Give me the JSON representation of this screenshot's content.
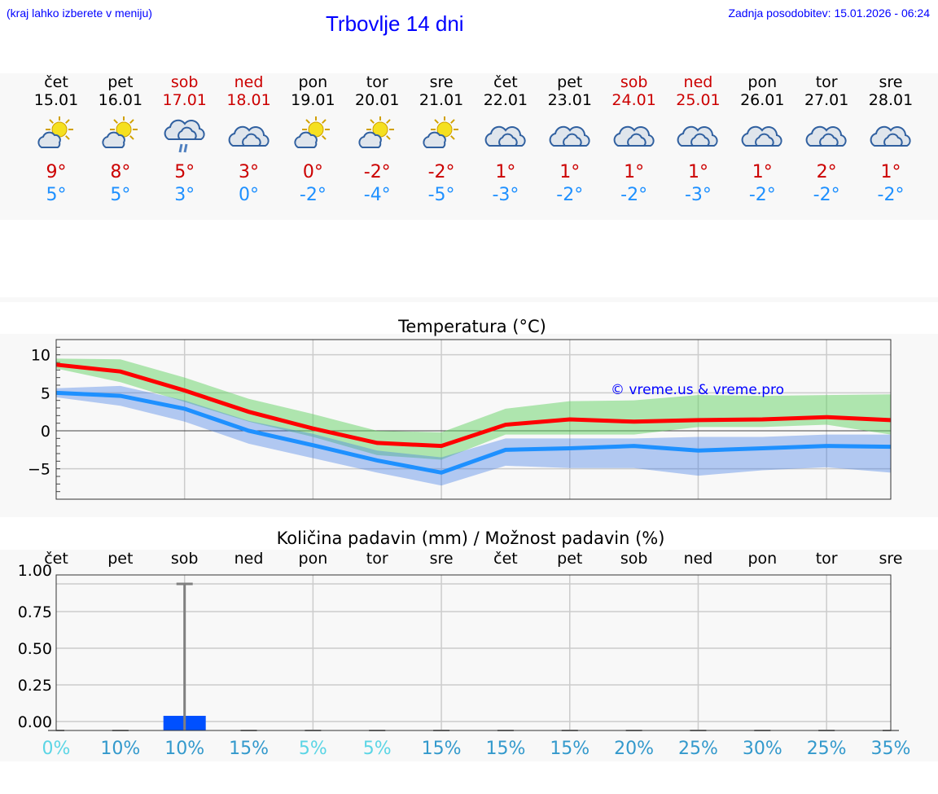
{
  "header": {
    "hint": "(kraj lahko izberete v meniju)",
    "title": "Trbovlje 14 dni",
    "updated": "Zadnja posodobitev: 15.01.2026 - 06:24"
  },
  "colors": {
    "max": "#cc0000",
    "min": "#1e90ff",
    "bar": "#0050ff"
  },
  "days": [
    {
      "name": "čet",
      "date": "15.01",
      "icon": "sun-cloud-icon",
      "max": "9°",
      "min": "5°",
      "weekend": false
    },
    {
      "name": "pet",
      "date": "16.01",
      "icon": "sun-cloud-icon",
      "max": "8°",
      "min": "5°",
      "weekend": false
    },
    {
      "name": "sob",
      "date": "17.01",
      "icon": "rain-cloud-icon",
      "max": "5°",
      "min": "3°",
      "weekend": true
    },
    {
      "name": "ned",
      "date": "18.01",
      "icon": "cloud-icon",
      "max": "3°",
      "min": "0°",
      "weekend": true
    },
    {
      "name": "pon",
      "date": "19.01",
      "icon": "sun-cloud-icon",
      "max": "0°",
      "min": "-2°",
      "weekend": false
    },
    {
      "name": "tor",
      "date": "20.01",
      "icon": "sun-cloud-icon",
      "max": "-2°",
      "min": "-4°",
      "weekend": false
    },
    {
      "name": "sre",
      "date": "21.01",
      "icon": "sun-cloud-icon",
      "max": "-2°",
      "min": "-5°",
      "weekend": false
    },
    {
      "name": "čet",
      "date": "22.01",
      "icon": "cloud-icon",
      "max": "1°",
      "min": "-3°",
      "weekend": false
    },
    {
      "name": "pet",
      "date": "23.01",
      "icon": "cloud-icon",
      "max": "1°",
      "min": "-2°",
      "weekend": false
    },
    {
      "name": "sob",
      "date": "24.01",
      "icon": "cloud-icon",
      "max": "1°",
      "min": "-2°",
      "weekend": true
    },
    {
      "name": "ned",
      "date": "25.01",
      "icon": "cloud-icon",
      "max": "1°",
      "min": "-3°",
      "weekend": true
    },
    {
      "name": "pon",
      "date": "26.01",
      "icon": "cloud-icon",
      "max": "1°",
      "min": "-2°",
      "weekend": false
    },
    {
      "name": "tor",
      "date": "27.01",
      "icon": "cloud-icon",
      "max": "2°",
      "min": "-2°",
      "weekend": false
    },
    {
      "name": "sre",
      "date": "28.01",
      "icon": "cloud-icon",
      "max": "1°",
      "min": "-2°",
      "weekend": false
    }
  ],
  "chart_data": [
    {
      "type": "line",
      "title": "Temperatura (°C)",
      "watermark": "© vreme.us & vreme.pro",
      "ylim": [
        -9,
        12
      ],
      "yticks": [
        "10",
        "5",
        "0",
        "−5"
      ],
      "ytick_values": [
        10,
        5,
        0,
        -5
      ],
      "series": [
        {
          "name": "max",
          "values": [
            8.7,
            7.8,
            5.3,
            2.5,
            0.3,
            -1.6,
            -2.0,
            0.8,
            1.5,
            1.2,
            1.4,
            1.5,
            1.8,
            1.4
          ],
          "band_low": [
            8.2,
            6.4,
            3.8,
            1.2,
            -0.8,
            -3.2,
            -3.8,
            -0.5,
            -0.5,
            -0.5,
            0.5,
            0.5,
            0.8,
            -0.5
          ],
          "band_high": [
            9.5,
            9.4,
            7.0,
            4.2,
            2.2,
            0.0,
            -0.2,
            2.9,
            3.9,
            4.0,
            4.7,
            4.6,
            4.7,
            4.8
          ]
        },
        {
          "name": "min",
          "values": [
            5.0,
            4.6,
            2.9,
            0.0,
            -1.9,
            -3.9,
            -5.5,
            -2.5,
            -2.3,
            -2.0,
            -2.6,
            -2.3,
            -2.0,
            -2.1
          ],
          "band_low": [
            4.4,
            3.3,
            1.2,
            -1.7,
            -3.6,
            -5.5,
            -7.2,
            -4.6,
            -4.9,
            -4.9,
            -5.9,
            -5.2,
            -4.8,
            -5.5
          ],
          "band_high": [
            5.6,
            5.9,
            4.0,
            1.3,
            -0.4,
            -2.6,
            -3.5,
            -1.0,
            -1.0,
            -1.0,
            -0.8,
            -0.8,
            -0.5,
            -0.5
          ]
        }
      ]
    },
    {
      "type": "bar",
      "title": "Količina padavin (mm) / Možnost padavin (%)",
      "categories": [
        "čet",
        "pet",
        "sob",
        "ned",
        "pon",
        "tor",
        "sre",
        "čet",
        "pet",
        "sob",
        "ned",
        "pon",
        "tor",
        "sre"
      ],
      "values": [
        0,
        0,
        0.1,
        0,
        0,
        0,
        0,
        0,
        0,
        0,
        0,
        0,
        0,
        0
      ],
      "error_high": [
        0,
        0,
        1.0,
        0,
        0,
        0,
        0,
        0,
        0,
        0,
        0,
        0,
        0,
        0
      ],
      "ylim": [
        -0.06,
        1.0
      ],
      "yticks": [
        "1.00",
        "0.75",
        "0.50",
        "0.25",
        "0.00"
      ],
      "ytick_values": [
        1,
        0.75,
        0.5,
        0.25,
        0
      ],
      "probability": [
        "0%",
        "10%",
        "10%",
        "15%",
        "5%",
        "5%",
        "15%",
        "15%",
        "15%",
        "20%",
        "25%",
        "30%",
        "25%",
        "35%"
      ]
    }
  ]
}
